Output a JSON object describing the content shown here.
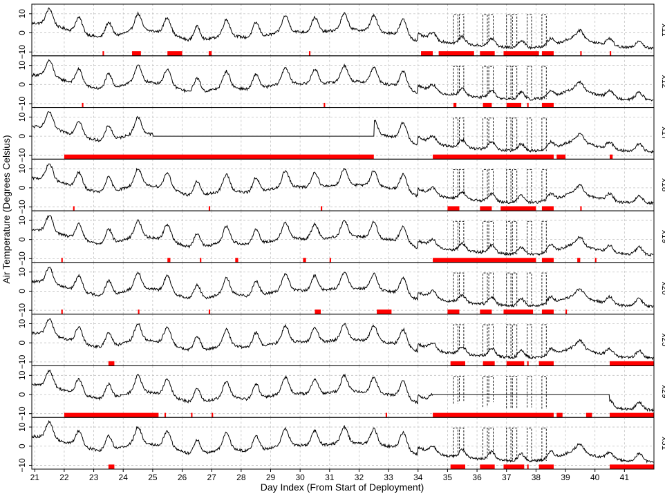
{
  "chart_data": {
    "type": "line",
    "xlabel": "Day Index (From Start of Deployment)",
    "ylabel": "Air Temperature (Degrees Celsius)",
    "xlim": [
      20.9,
      42.0
    ],
    "ylim": [
      -12,
      15
    ],
    "x_ticks": [
      21,
      22,
      23,
      24,
      25,
      26,
      27,
      28,
      29,
      30,
      31,
      32,
      33,
      34,
      35,
      36,
      37,
      38,
      39,
      40,
      41
    ],
    "y_ticks": [
      -10,
      0,
      10
    ],
    "y_tick_labels": [
      "−10",
      "0",
      "10"
    ],
    "grid": true,
    "grid_style": "dashed",
    "colors": {
      "line": "#000000",
      "flag": "#ff0000",
      "grid": "#bfbfbf",
      "frame": "#000000"
    },
    "series_style": "solid observed line with dashed reference/predicted line; red marks flag anomalous intervals",
    "daily_cycle_peaks": [
      [
        21.4,
        13
      ],
      [
        22.5,
        8
      ],
      [
        23.4,
        5
      ],
      [
        24.5,
        10
      ],
      [
        25.5,
        8
      ],
      [
        26.4,
        3
      ],
      [
        27.5,
        7
      ],
      [
        28.4,
        5
      ],
      [
        29.5,
        9
      ],
      [
        30.5,
        8
      ],
      [
        31.5,
        10
      ],
      [
        32.5,
        9
      ],
      [
        33.5,
        7
      ],
      [
        34.5,
        0
      ],
      [
        35.5,
        -2
      ],
      [
        36.5,
        -3
      ],
      [
        37.5,
        -4
      ],
      [
        38.5,
        -3
      ],
      [
        39.3,
        2
      ],
      [
        40.5,
        -3
      ],
      [
        41.5,
        -4
      ]
    ],
    "dashed_excursion_days": [
      35.2,
      35.4,
      36.2,
      36.4,
      37.0,
      37.2,
      37.7,
      38.2
    ],
    "panels": [
      {
        "name": "x11",
        "flag_intervals": [
          [
            23.3,
            23.35
          ],
          [
            24.3,
            24.6
          ],
          [
            25.5,
            26.0
          ],
          [
            26.9,
            27.0
          ],
          [
            30.3,
            30.35
          ],
          [
            34.1,
            34.5
          ],
          [
            34.7,
            35.9
          ],
          [
            36.1,
            36.6
          ],
          [
            36.9,
            38.1
          ],
          [
            38.2,
            38.6
          ],
          [
            39.5,
            39.55
          ],
          [
            40.5,
            40.55
          ]
        ]
      },
      {
        "name": "x12",
        "flag_intervals": [
          [
            22.6,
            22.65
          ],
          [
            30.8,
            30.85
          ],
          [
            35.2,
            35.3
          ],
          [
            36.2,
            36.5
          ],
          [
            37.0,
            37.5
          ],
          [
            37.7,
            37.75
          ],
          [
            38.2,
            38.6
          ]
        ]
      },
      {
        "name": "x17",
        "flag_intervals": [
          [
            22.0,
            32.5
          ],
          [
            34.5,
            38.6
          ],
          [
            38.7,
            39.0
          ],
          [
            40.5,
            40.6
          ]
        ],
        "stuck_at_zero": [
          [
            25.0,
            32.5
          ]
        ]
      },
      {
        "name": "x18",
        "flag_intervals": [
          [
            22.3,
            22.35
          ],
          [
            26.9,
            26.95
          ],
          [
            30.7,
            30.75
          ],
          [
            35.0,
            35.4
          ],
          [
            36.1,
            36.5
          ],
          [
            36.8,
            38.0
          ],
          [
            38.2,
            38.6
          ],
          [
            39.5,
            39.55
          ]
        ]
      },
      {
        "name": "x19",
        "flag_intervals": [
          [
            21.9,
            21.95
          ],
          [
            25.5,
            25.6
          ],
          [
            26.6,
            26.65
          ],
          [
            27.8,
            27.9
          ],
          [
            30.1,
            30.2
          ],
          [
            31.0,
            31.05
          ],
          [
            34.5,
            38.0
          ],
          [
            38.2,
            38.6
          ],
          [
            39.4,
            39.5
          ],
          [
            40.0,
            40.05
          ]
        ]
      },
      {
        "name": "x20",
        "flag_intervals": [
          [
            21.9,
            21.95
          ],
          [
            24.5,
            24.55
          ],
          [
            26.9,
            26.95
          ],
          [
            30.5,
            30.7
          ],
          [
            32.6,
            33.1
          ],
          [
            35.0,
            35.4
          ],
          [
            36.1,
            36.5
          ],
          [
            36.9,
            37.9
          ],
          [
            38.2,
            38.6
          ],
          [
            39.0,
            39.05
          ]
        ]
      },
      {
        "name": "x25",
        "flag_intervals": [
          [
            23.5,
            23.7
          ],
          [
            35.1,
            35.6
          ],
          [
            36.2,
            36.6
          ],
          [
            37.0,
            37.6
          ],
          [
            37.7,
            37.75
          ],
          [
            38.1,
            38.6
          ],
          [
            40.5,
            42.0
          ]
        ]
      },
      {
        "name": "x29",
        "flag_intervals": [
          [
            22.0,
            25.2
          ],
          [
            25.4,
            25.45
          ],
          [
            26.3,
            26.35
          ],
          [
            27.0,
            27.05
          ],
          [
            32.9,
            32.95
          ],
          [
            34.5,
            38.6
          ],
          [
            38.7,
            38.9
          ],
          [
            39.7,
            39.9
          ],
          [
            40.5,
            42.0
          ]
        ],
        "stuck_at_zero": [
          [
            34.5,
            40.5
          ]
        ]
      },
      {
        "name": "x31",
        "flag_intervals": [
          [
            23.5,
            23.7
          ],
          [
            35.1,
            35.6
          ],
          [
            36.1,
            36.6
          ],
          [
            36.9,
            37.6
          ],
          [
            37.7,
            37.75
          ],
          [
            38.1,
            38.6
          ],
          [
            40.5,
            42.0
          ]
        ]
      }
    ]
  }
}
